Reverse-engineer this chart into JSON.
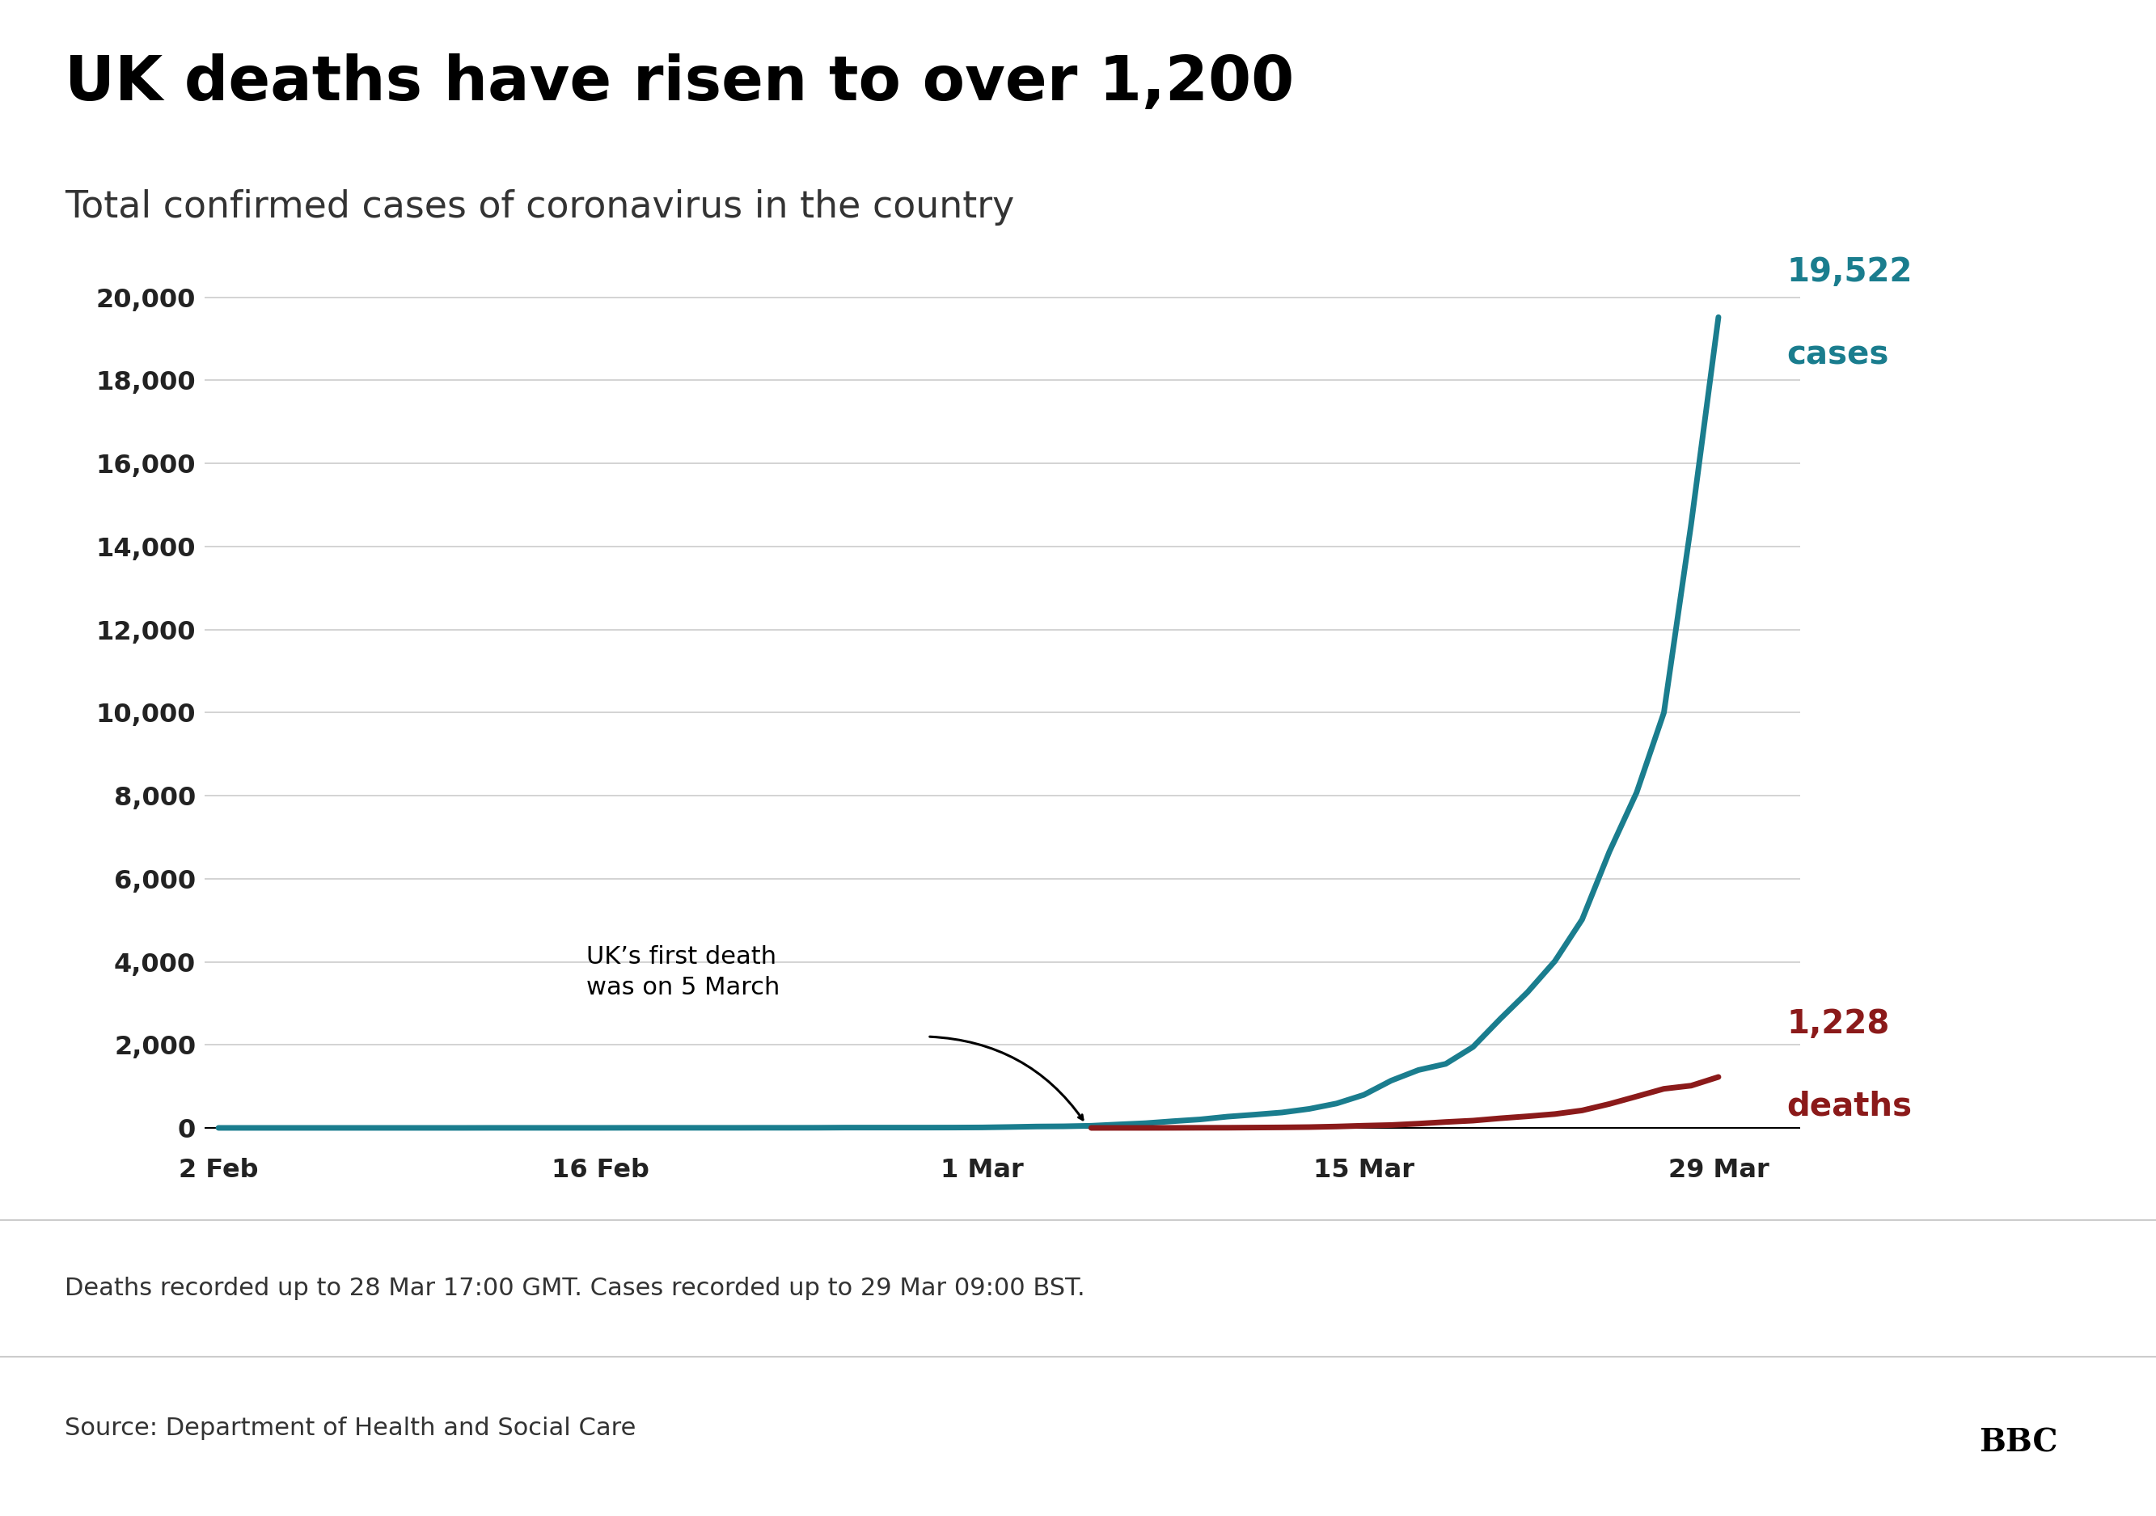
{
  "title": "UK deaths have risen to over 1,200",
  "subtitle": "Total confirmed cases of coronavirus in the country",
  "title_color": "#000000",
  "subtitle_color": "#333333",
  "background_color": "#ffffff",
  "cases_color": "#1a7d8e",
  "deaths_color": "#8b1a1a",
  "cases_label_line1": "19,522",
  "cases_label_line2": "cases",
  "deaths_label_line1": "1,228",
  "deaths_label_line2": "deaths",
  "annotation_text": "UK’s first death\nwas on 5 March",
  "footer_line1": "Deaths recorded up to 28 Mar 17:00 GMT. Cases recorded up to 29 Mar 09:00 BST.",
  "footer_line2": "Source: Department of Health and Social Care",
  "footer_bg": "#f2f2f2",
  "footer_sep_color": "#cccccc",
  "yticks": [
    0,
    2000,
    4000,
    6000,
    8000,
    10000,
    12000,
    14000,
    16000,
    18000,
    20000
  ],
  "xtick_labels": [
    "2 Feb",
    "16 Feb",
    "1 Mar",
    "15 Mar",
    "29 Mar"
  ],
  "ylim": [
    -400,
    21500
  ],
  "xlim": [
    -0.5,
    58
  ],
  "cases_data": {
    "dates_offset": [
      0,
      1,
      2,
      3,
      4,
      5,
      6,
      7,
      8,
      9,
      10,
      11,
      12,
      13,
      14,
      15,
      16,
      17,
      18,
      19,
      20,
      21,
      22,
      23,
      24,
      25,
      26,
      27,
      28,
      29,
      30,
      31,
      32,
      33,
      34,
      35,
      36,
      37,
      38,
      39,
      40,
      41,
      42,
      43,
      44,
      45,
      46,
      47,
      48,
      49,
      50,
      51,
      52,
      53,
      54,
      55
    ],
    "values": [
      2,
      2,
      2,
      2,
      2,
      2,
      2,
      2,
      2,
      2,
      3,
      3,
      3,
      3,
      3,
      4,
      4,
      4,
      4,
      4,
      5,
      5,
      6,
      9,
      9,
      9,
      9,
      10,
      13,
      23,
      35,
      40,
      53,
      85,
      115,
      163,
      206,
      273,
      321,
      373,
      460,
      590,
      798,
      1140,
      1395,
      1543,
      1950,
      2626,
      3269,
      4014,
      5018,
      6650,
      8077,
      10000,
      14543,
      19522
    ]
  },
  "deaths_data": {
    "dates_offset": [
      32,
      33,
      34,
      35,
      36,
      37,
      38,
      39,
      40,
      41,
      42,
      43,
      44,
      45,
      46,
      47,
      48,
      49,
      50,
      51,
      52,
      53,
      54,
      55
    ],
    "values": [
      1,
      2,
      2,
      3,
      5,
      6,
      10,
      14,
      21,
      35,
      55,
      71,
      104,
      144,
      177,
      233,
      281,
      335,
      422,
      578,
      759,
      943,
      1019,
      1228
    ]
  },
  "x_tick_offsets": [
    0,
    14,
    28,
    42,
    55
  ]
}
